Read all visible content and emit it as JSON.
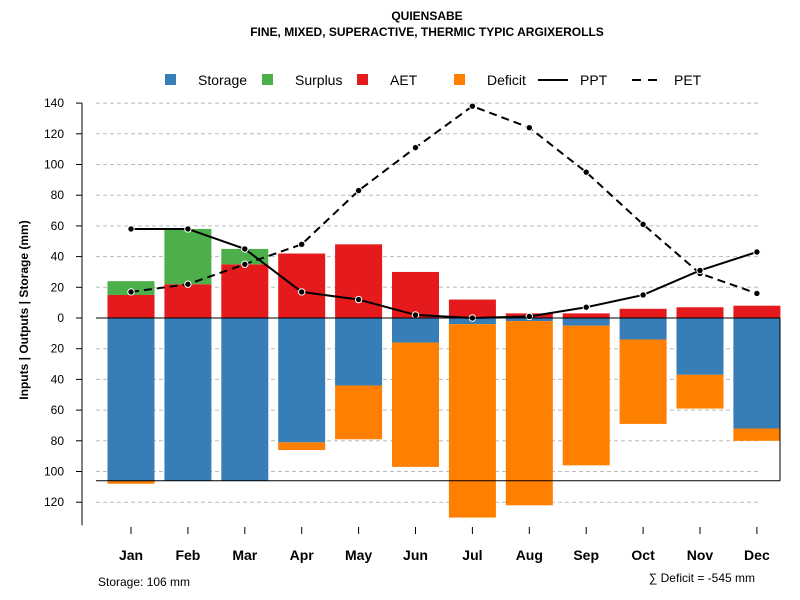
{
  "chart_data": {
    "type": "bar",
    "title": "QUIENSABE",
    "subtitle": "FINE, MIXED, SUPERACTIVE, THERMIC TYPIC ARGIXEROLLS",
    "ylabel": "Inputs | Outputs | Storage    (mm)",
    "categories": [
      "Jan",
      "Feb",
      "Mar",
      "Apr",
      "May",
      "Jun",
      "Jul",
      "Aug",
      "Sep",
      "Oct",
      "Nov",
      "Dec"
    ],
    "ylim": [
      -135,
      140
    ],
    "yticks": [
      140,
      120,
      100,
      80,
      60,
      40,
      20,
      0,
      -20,
      -40,
      -60,
      -80,
      -100,
      -120
    ],
    "ytick_labels": [
      "140",
      "120",
      "100",
      "80",
      "60",
      "40",
      "20",
      "0",
      "20",
      "40",
      "60",
      "80",
      "100",
      "120"
    ],
    "storage_capacity": 106,
    "legend": [
      {
        "label": "Storage",
        "kind": "box",
        "color": "#377EB8"
      },
      {
        "label": "Surplus",
        "kind": "box",
        "color": "#4DAF4A"
      },
      {
        "label": "AET",
        "kind": "box",
        "color": "#E41A1C"
      },
      {
        "label": "Deficit",
        "kind": "box",
        "color": "#FF7F00"
      },
      {
        "label": "PPT",
        "kind": "solid"
      },
      {
        "label": "PET",
        "kind": "dashed"
      }
    ],
    "colors": {
      "storage": "#377EB8",
      "surplus": "#4DAF4A",
      "aet": "#E41A1C",
      "deficit": "#FF7F00"
    },
    "series": [
      {
        "name": "AET",
        "values": [
          15,
          22,
          35,
          42,
          48,
          30,
          12,
          3,
          3,
          6,
          7,
          8
        ]
      },
      {
        "name": "Surplus",
        "values": [
          9,
          36,
          10,
          0,
          0,
          0,
          0,
          0,
          0,
          0,
          0,
          0
        ]
      },
      {
        "name": "Storage",
        "values": [
          106,
          106,
          106,
          81,
          44,
          16,
          4,
          2,
          5,
          14,
          37,
          72
        ]
      },
      {
        "name": "Deficit",
        "values": [
          2,
          0,
          0,
          5,
          35,
          81,
          126,
          120,
          91,
          55,
          22,
          8
        ]
      },
      {
        "name": "PPT",
        "values": [
          58,
          58,
          45,
          17,
          12,
          2,
          0,
          1,
          7,
          15,
          31,
          43
        ]
      },
      {
        "name": "PET",
        "values": [
          17,
          22,
          35,
          48,
          83,
          111,
          138,
          124,
          95,
          61,
          29,
          16
        ]
      }
    ],
    "grid": true
  },
  "footer": {
    "storage_text": "Storage: 106 mm",
    "deficit_text": "∑ Deficit = -545 mm"
  }
}
